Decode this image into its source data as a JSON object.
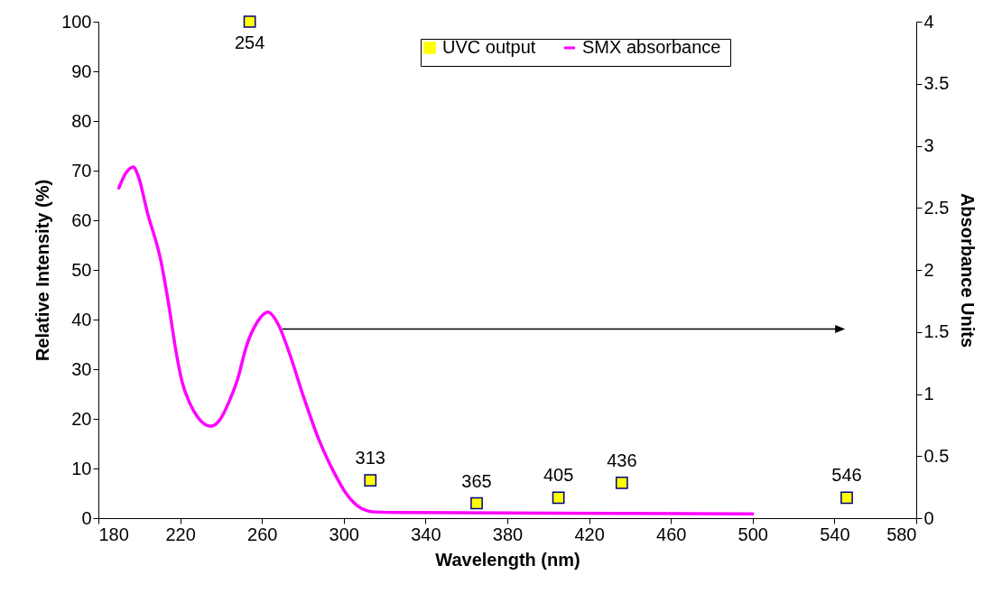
{
  "chart_data": {
    "type": "scatter",
    "xlabel": "Wavelength (nm)",
    "ylabel": "Relative Intensity (%)",
    "y2label": "Absorbance Units",
    "xlim": [
      180,
      580
    ],
    "xticks": [
      180,
      220,
      260,
      300,
      340,
      380,
      420,
      460,
      500,
      540,
      580
    ],
    "ylim": [
      0,
      100
    ],
    "yticks": [
      0,
      10,
      20,
      30,
      40,
      50,
      60,
      70,
      80,
      90,
      100
    ],
    "y2lim": [
      0,
      4
    ],
    "y2ticks": [
      0,
      0.5,
      1,
      1.5,
      2,
      2.5,
      3,
      3.5,
      4
    ],
    "legend": "top right",
    "annotations": [
      {
        "text": "254",
        "x": 254,
        "y": 100
      },
      {
        "text": "313",
        "x": 313,
        "y": 7.6
      },
      {
        "text": "365",
        "x": 365,
        "y": 3.0
      },
      {
        "text": "405",
        "x": 405,
        "y": 4.1
      },
      {
        "text": "436",
        "x": 436,
        "y": 7.1
      },
      {
        "text": "546",
        "x": 546,
        "y": 4.1
      }
    ],
    "series": [
      {
        "name": "UVC output",
        "marker": "square",
        "color": "#ffff00",
        "x": [
          254,
          313,
          365,
          405,
          436,
          546
        ],
        "values": [
          100,
          7.6,
          3.0,
          4.1,
          7.1,
          4.1
        ]
      },
      {
        "name": "SMX absorbance",
        "type": "line",
        "axis": "y2",
        "color": "#ff00ff",
        "x": [
          190,
          193.4,
          197.1,
          199.6,
          204,
          210.6,
          214.3,
          218,
          220.9,
          224.6,
          228.3,
          234.9,
          239.3,
          243.7,
          248.1,
          252.5,
          257.7,
          262.9,
          268,
          273.2,
          280.5,
          287.9,
          295.2,
          301.1,
          308.5,
          315,
          330,
          400,
          500
        ],
        "values": [
          2.66,
          2.78,
          2.83,
          2.75,
          2.46,
          2.07,
          1.73,
          1.34,
          1.1,
          0.93,
          0.82,
          0.74,
          0.79,
          0.93,
          1.12,
          1.39,
          1.58,
          1.66,
          1.56,
          1.34,
          0.97,
          0.63,
          0.37,
          0.2,
          0.08,
          0.05,
          0.045,
          0.04,
          0.035
        ]
      }
    ]
  }
}
